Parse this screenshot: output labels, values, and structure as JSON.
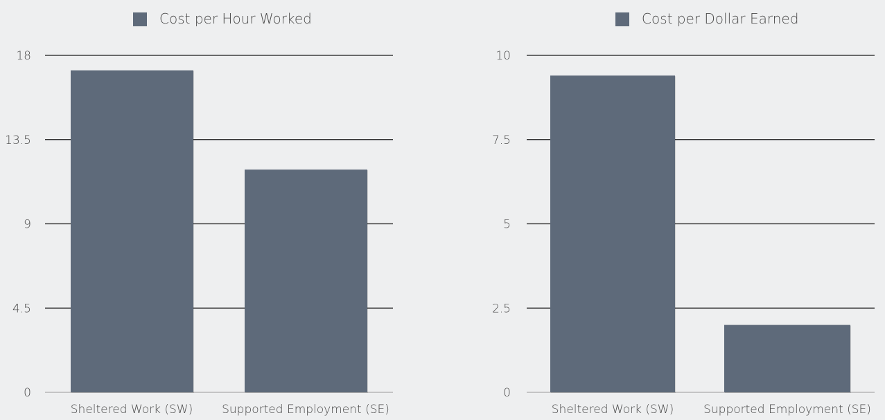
{
  "chart_data": [
    {
      "type": "bar",
      "legend": {
        "label": "Cost per Hour Worked",
        "color": "#5e6a7a",
        "placement": "top-center"
      },
      "categories": [
        "Sheltered Work (SW)",
        "Supported Employment (SE)"
      ],
      "values": [
        17.2,
        11.9
      ],
      "yticks": [
        "0",
        "4.5",
        "9",
        "13.5",
        "18"
      ],
      "ylim": [
        0,
        18
      ],
      "grid": true,
      "title": "",
      "xlabel": "",
      "ylabel": ""
    },
    {
      "type": "bar",
      "legend": {
        "label": "Cost per Dollar Earned",
        "color": "#5e6a7a",
        "placement": "top-center"
      },
      "categories": [
        "Sheltered Work (SW)",
        "Supported Employment (SE)"
      ],
      "values": [
        9.4,
        2.0
      ],
      "yticks": [
        "0",
        "2.5",
        "5",
        "7.5",
        "10"
      ],
      "ylim": [
        0,
        10
      ],
      "grid": true,
      "title": "",
      "xlabel": "",
      "ylabel": ""
    }
  ],
  "colors": {
    "background": "#eeeff0",
    "bar": "#5e6a7a",
    "gridline": "#1a1a1a",
    "text": "#4a4a4a"
  }
}
